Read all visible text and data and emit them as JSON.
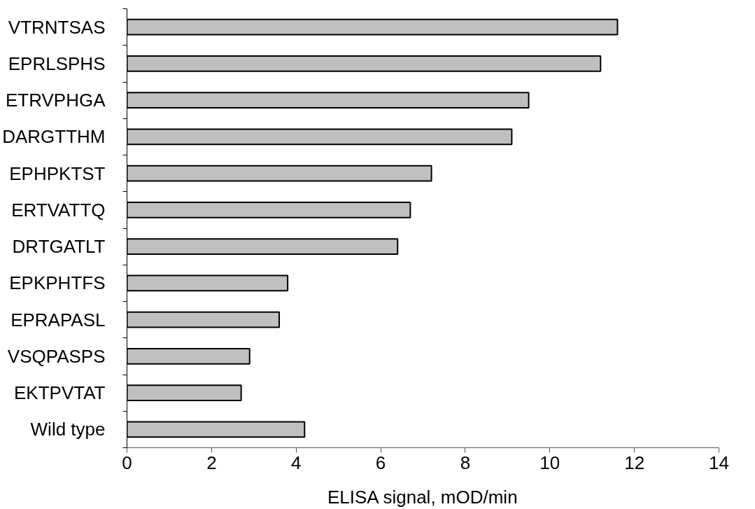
{
  "chart_data": {
    "type": "bar",
    "orientation": "horizontal",
    "xlabel": "ELISA signal, mOD/min",
    "categories": [
      "VTRNTSAS",
      "EPRLSPHS",
      "ETRVPHGA",
      "DARGTTHM",
      "EPHPKTST",
      "ERTVATTQ",
      "DRTGATLT",
      "EPKPHTFS",
      "EPRAPASL",
      "VSQPASPS",
      "EKTPVTAT",
      "Wild type"
    ],
    "values": [
      11.6,
      11.2,
      9.5,
      9.1,
      7.2,
      6.7,
      6.4,
      3.8,
      3.6,
      2.9,
      2.7,
      4.2
    ],
    "color": "#c0c0c0",
    "xlim": [
      0,
      14
    ],
    "xticks": [
      0,
      2,
      4,
      6,
      8,
      10,
      12,
      14
    ],
    "grid": false
  }
}
